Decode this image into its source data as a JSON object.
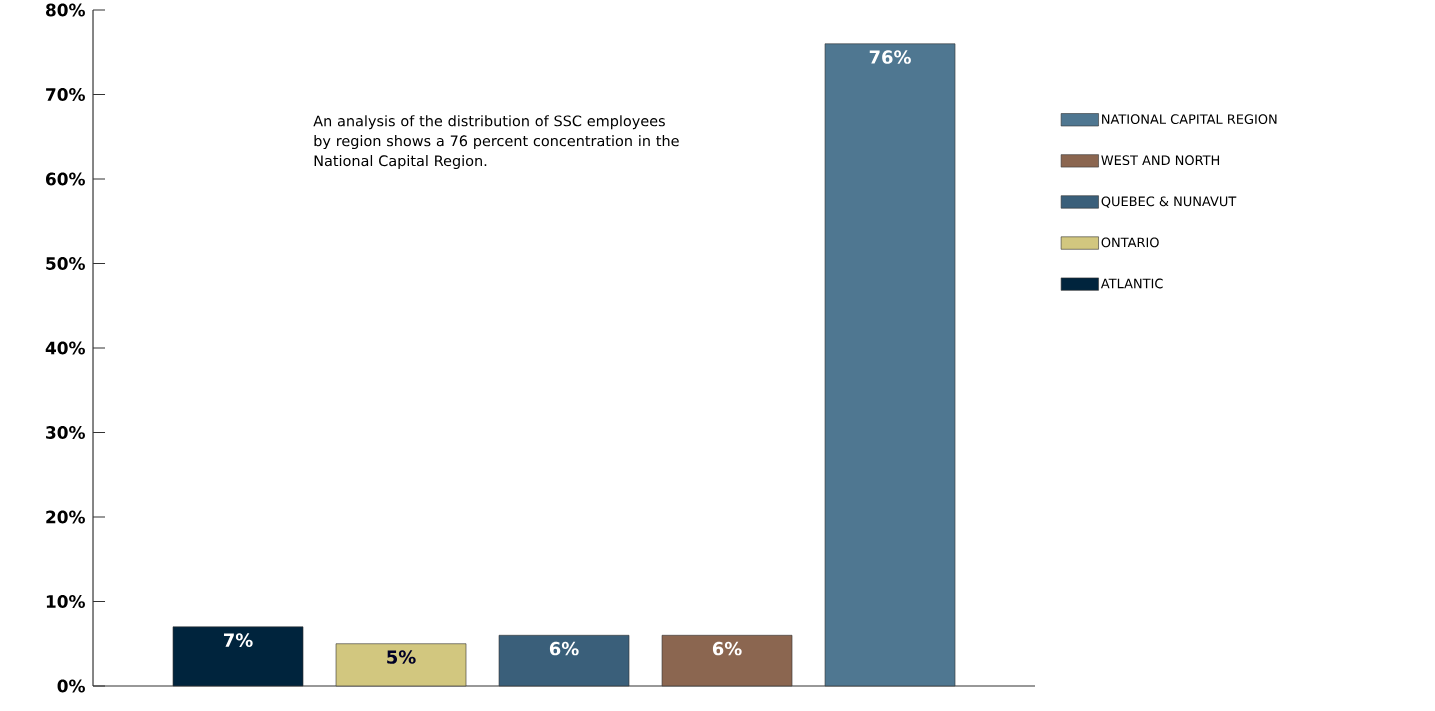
{
  "chart_data": {
    "type": "bar",
    "categories": [
      null,
      null,
      null,
      null,
      null
    ],
    "series": [
      {
        "name": "ATLANTIC",
        "color": "#00243d",
        "values": [
          7,
          null,
          null,
          null,
          null
        ],
        "value_labels": [
          "7%",
          null,
          null,
          null,
          null
        ]
      },
      {
        "name": "ONTARIO",
        "color": "#d2c77f",
        "values": [
          null,
          5,
          null,
          null,
          null
        ],
        "value_labels": [
          null,
          "5%",
          null,
          null,
          null
        ]
      },
      {
        "name": "QUEBEC & NUNAVUT",
        "color": "#3a5f7a",
        "values": [
          null,
          null,
          6,
          null,
          null
        ],
        "value_labels": [
          null,
          null,
          "6%",
          null,
          null
        ]
      },
      {
        "name": "WEST AND NORTH",
        "color": "#8b6650",
        "values": [
          null,
          null,
          null,
          6,
          null
        ],
        "value_labels": [
          null,
          null,
          null,
          "6%",
          null
        ]
      },
      {
        "name": "NATIONAL CAPITAL REGION",
        "color": "#4f7791",
        "values": [
          null,
          null,
          null,
          null,
          76
        ],
        "value_labels": [
          null,
          null,
          null,
          null,
          "76%"
        ]
      }
    ],
    "ylim": [
      0,
      80
    ],
    "yticks": [
      {
        "value": 0,
        "label": "0%"
      },
      {
        "value": 10,
        "label": "10%"
      },
      {
        "value": 20,
        "label": "20%"
      },
      {
        "value": 30,
        "label": "30%"
      },
      {
        "value": 40,
        "label": "40%"
      },
      {
        "value": 50,
        "label": "50%"
      },
      {
        "value": 60,
        "label": "60%"
      },
      {
        "value": 70,
        "label": "70%"
      },
      {
        "value": 80,
        "label": "80%"
      }
    ],
    "legend": "right",
    "grid": false,
    "annotations": [
      "An analysis of the distribution of SSC employees by region shows a 76 percent concentration in the National Capital Region."
    ]
  }
}
